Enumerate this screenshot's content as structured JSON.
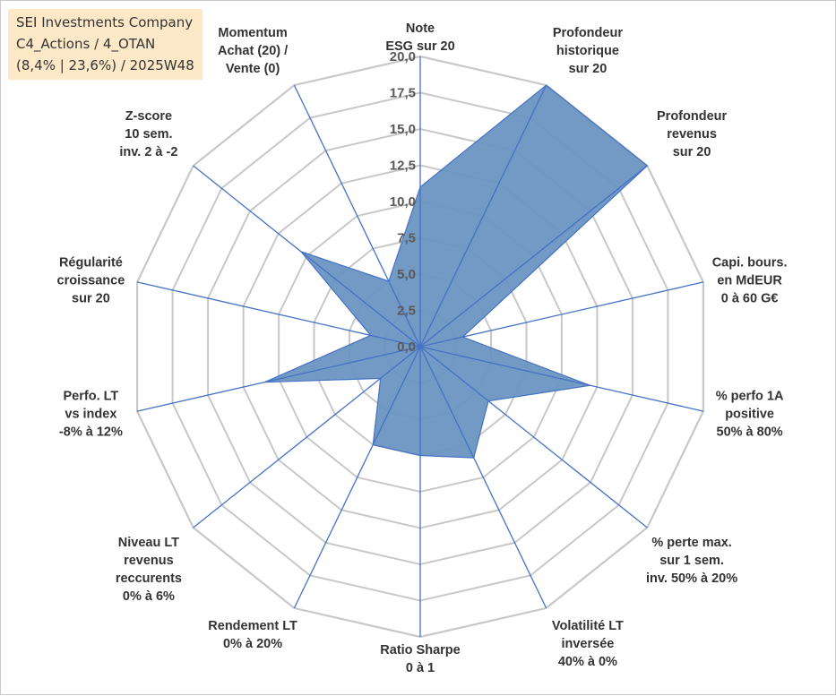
{
  "info_box": {
    "line1": "SEI Investments Company",
    "line2": "C4_Actions / 4_OTAN",
    "line3": "(8,4% | 23,6%) / 2025W48"
  },
  "chart_data": {
    "type": "radar",
    "axes": [
      [
        "Note",
        "ESG sur 20"
      ],
      [
        "Profondeur",
        "historique",
        "sur 20"
      ],
      [
        "Profondeur",
        "revenus",
        "sur 20"
      ],
      [
        "Capi. bours.",
        "en MdEUR",
        "0 à 60 G€"
      ],
      [
        "% perfo 1A",
        "positive",
        "50% à 80%"
      ],
      [
        "% perte max.",
        "sur 1 sem.",
        "inv. 50% à 20%"
      ],
      [
        "Volatilité LT",
        "inversée",
        "40% à 0%"
      ],
      [
        "Ratio Sharpe",
        "0 à 1"
      ],
      [
        "Rendement LT",
        "0% à 20%"
      ],
      [
        "Niveau LT",
        "revenus",
        "reccurents",
        "0% à 6%"
      ],
      [
        "Perfo. LT",
        "vs index",
        "-8% à 12%"
      ],
      [
        "Régularité",
        "croissance",
        "sur 20"
      ],
      [
        "Z-score",
        "10 sem.",
        "inv. 2 à -2"
      ],
      [
        "Momentum",
        "Achat (20) /",
        "Vente (0)"
      ]
    ],
    "series": [
      {
        "values": [
          11.0,
          20.0,
          20.0,
          3.0,
          12.0,
          6.0,
          8.5,
          7.5,
          7.5,
          3.5,
          11.0,
          3.5,
          10.5,
          5.0
        ]
      }
    ],
    "r_range": [
      0,
      20
    ],
    "tick_labels": [
      "0,0",
      "2,5",
      "5,0",
      "7,5",
      "10,0",
      "12,5",
      "15,0",
      "17,5",
      "20,0"
    ],
    "grid": true,
    "colors": {
      "fill": "#6c93c2",
      "stroke": "#4472c4",
      "spoke": "#4472c4",
      "grid": "#c8c8c8"
    }
  }
}
